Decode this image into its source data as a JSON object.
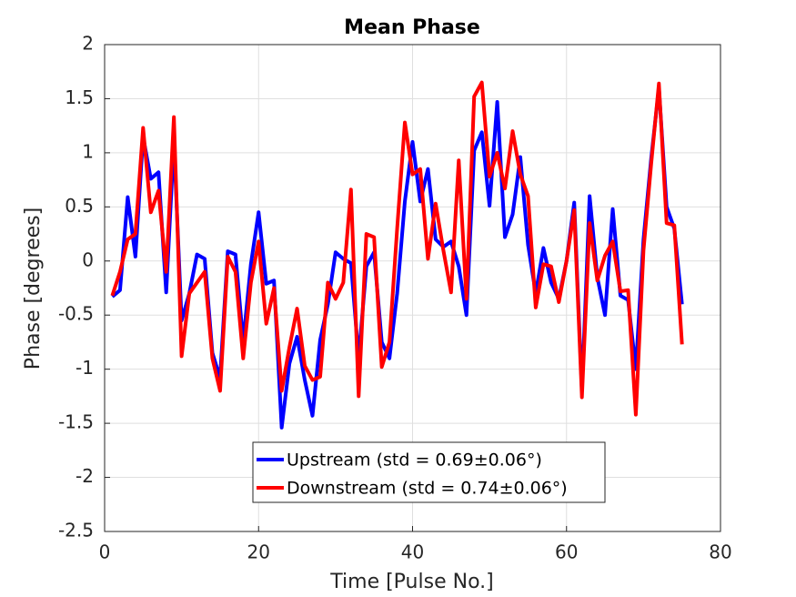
{
  "chart_data": {
    "type": "line",
    "title": "Mean Phase",
    "x_label": "Time [Pulse No.]",
    "y_label": "Phase [degrees]",
    "x": [
      1,
      2,
      3,
      4,
      5,
      6,
      7,
      8,
      9,
      10,
      11,
      12,
      13,
      14,
      15,
      16,
      17,
      18,
      19,
      20,
      21,
      22,
      23,
      24,
      25,
      26,
      27,
      28,
      29,
      30,
      31,
      32,
      33,
      34,
      35,
      36,
      37,
      38,
      39,
      40,
      41,
      42,
      43,
      44,
      45,
      46,
      47,
      48,
      49,
      50,
      51,
      52,
      53,
      54,
      55,
      56,
      57,
      58,
      59,
      60,
      61,
      62,
      63,
      64,
      65,
      66,
      67,
      68,
      69,
      70,
      71,
      72,
      73,
      74,
      75
    ],
    "series": [
      {
        "name": "Upstream (std = 0.69±0.06°)",
        "color": "#0000ff",
        "values": [
          -0.33,
          -0.27,
          0.59,
          0.04,
          1.15,
          0.76,
          0.82,
          -0.29,
          1.1,
          -0.55,
          -0.3,
          0.06,
          0.02,
          -0.85,
          -1.08,
          0.09,
          0.06,
          -0.75,
          -0.03,
          0.45,
          -0.21,
          -0.18,
          -1.54,
          -0.95,
          -0.7,
          -1.1,
          -1.43,
          -0.73,
          -0.4,
          0.08,
          0.02,
          -0.02,
          -0.9,
          -0.05,
          0.08,
          -0.75,
          -0.9,
          -0.3,
          0.55,
          1.1,
          0.55,
          0.85,
          0.2,
          0.13,
          0.18,
          -0.05,
          -0.5,
          1.02,
          1.19,
          0.51,
          1.47,
          0.22,
          0.43,
          0.96,
          0.15,
          -0.3,
          0.12,
          -0.2,
          -0.35,
          0,
          0.54,
          -1.2,
          0.6,
          -0.15,
          -0.5,
          0.48,
          -0.32,
          -0.36,
          -1.0,
          0.2,
          0.95,
          1.6,
          0.5,
          0.3,
          -0.4
        ]
      },
      {
        "name": "Downstream (std = 0.74±0.06°)",
        "color": "#ff0000",
        "values": [
          -0.32,
          -0.1,
          0.2,
          0.25,
          1.23,
          0.45,
          0.65,
          -0.1,
          1.33,
          -0.88,
          -0.3,
          -0.2,
          -0.1,
          -0.9,
          -1.2,
          0.04,
          -0.1,
          -0.9,
          -0.2,
          0.18,
          -0.58,
          -0.25,
          -1.2,
          -0.8,
          -0.44,
          -0.97,
          -1.1,
          -1.07,
          -0.2,
          -0.35,
          -0.2,
          0.66,
          -1.25,
          0.25,
          0.22,
          -0.98,
          -0.75,
          0.3,
          1.28,
          0.8,
          0.85,
          0.02,
          0.53,
          0.1,
          -0.29,
          0.93,
          -0.35,
          1.52,
          1.65,
          0.78,
          1.0,
          0.67,
          1.2,
          0.8,
          0.6,
          -0.43,
          -0.03,
          -0.05,
          -0.38,
          0,
          0.47,
          -1.26,
          0.35,
          -0.18,
          0.05,
          0.18,
          -0.28,
          -0.27,
          -1.42,
          0.1,
          0.9,
          1.64,
          0.35,
          0.33,
          -0.77
        ]
      }
    ],
    "xlim": [
      0,
      80
    ],
    "xticks": [
      0,
      20,
      40,
      60,
      80
    ],
    "ylim": [
      -2.5,
      2
    ],
    "yticks": [
      -2.5,
      -2,
      -1.5,
      -1,
      -0.5,
      0,
      0.5,
      1,
      1.5,
      2
    ],
    "grid": true
  }
}
